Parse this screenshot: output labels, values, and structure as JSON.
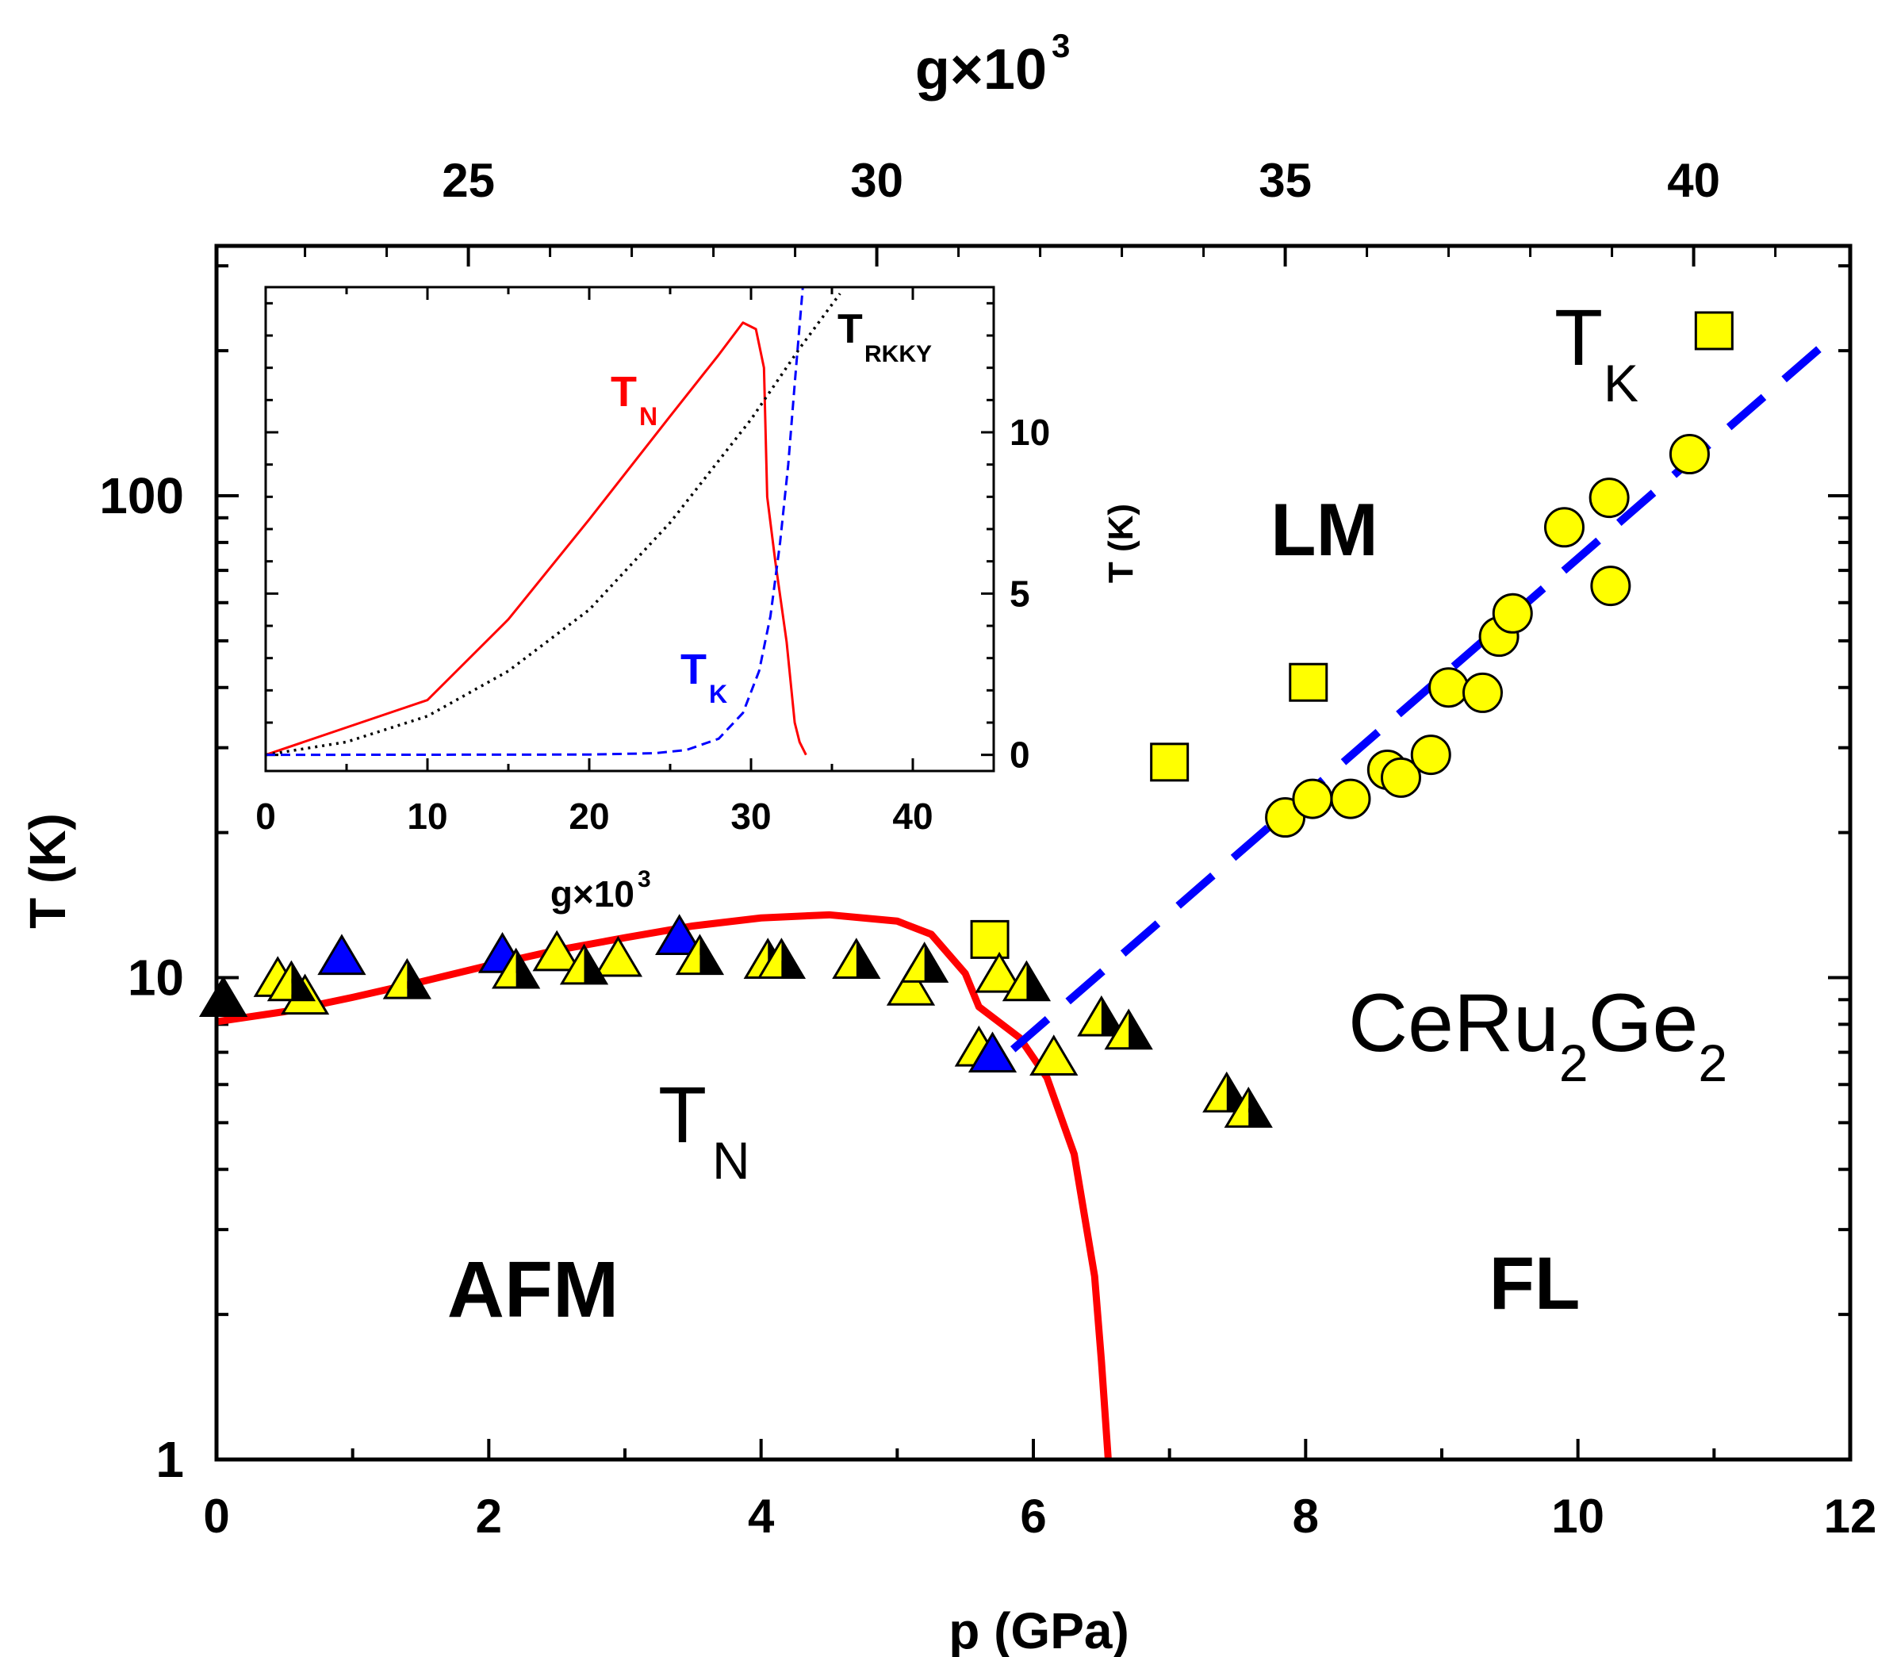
{
  "chart_data": [
    {
      "type": "scatter",
      "title": "",
      "material": {
        "base": "CeRu",
        "sub1": "2",
        "mid": "Ge",
        "sub2": "2"
      },
      "xlabel": "p (GPa)",
      "ylabel": "T (K)",
      "top_xlabel": {
        "base": "g×10",
        "sup": "3"
      },
      "xlim": [
        0,
        12
      ],
      "ylim": [
        1,
        330
      ],
      "yscale": "log",
      "x_ticks": [
        0,
        2,
        4,
        6,
        8,
        10,
        12
      ],
      "y_ticks": [
        1,
        10,
        100
      ],
      "top_x_ticks": [
        25,
        30,
        35,
        40
      ],
      "top_x_positions_gpa": [
        1.85,
        4.85,
        7.85,
        10.85
      ],
      "regions": {
        "afm": "AFM",
        "lm": "LM",
        "fl": "FL"
      },
      "annotations": {
        "tn": {
          "base": "T",
          "sub": "N"
        },
        "tk": {
          "base": "T",
          "sub": "K"
        }
      },
      "series": [
        {
          "name": "T_N fit",
          "kind": "line",
          "color": "#ff0000",
          "x": [
            0,
            0.5,
            1,
            1.5,
            2,
            2.5,
            3,
            3.5,
            4,
            4.5,
            5,
            5.25,
            5.5,
            5.6,
            5.9,
            6.1,
            6.3,
            6.45,
            6.5,
            6.55
          ],
          "y": [
            8.1,
            8.5,
            9.1,
            9.8,
            10.6,
            11.4,
            12.1,
            12.8,
            13.3,
            13.5,
            13.1,
            12.3,
            10.2,
            8.7,
            7.5,
            6.2,
            4.3,
            2.4,
            1.6,
            1.0
          ]
        },
        {
          "name": "T_K fit",
          "kind": "dashed",
          "color": "#0000ff",
          "x": [
            5.85,
            11.8
          ],
          "y": [
            7.1,
            205
          ]
        },
        {
          "name": "Yellow circles (T_K)",
          "kind": "circle",
          "fill": "#ffff00",
          "x": [
            7.85,
            8.05,
            8.33,
            8.6,
            8.7,
            8.92,
            9.05,
            9.3,
            9.42,
            9.52,
            9.9,
            10.23,
            10.24,
            10.82
          ],
          "y": [
            21.5,
            23.5,
            23.5,
            27,
            26,
            29,
            40,
            39,
            51,
            57,
            86,
            99,
            65,
            122
          ]
        },
        {
          "name": "Yellow squares",
          "kind": "square",
          "fill": "#ffff00",
          "x": [
            5.68,
            7.0,
            8.02,
            11.0
          ],
          "y": [
            12,
            28,
            41,
            220
          ]
        },
        {
          "name": "Yellow triangles",
          "kind": "triangle",
          "fill": "#ffff00",
          "x": [
            0.45,
            0.65,
            2.5,
            2.95,
            5.1,
            5.6,
            5.75,
            6.15
          ],
          "y": [
            9.9,
            9.1,
            11.2,
            10.9,
            9.5,
            7.1,
            10.1,
            6.8
          ]
        },
        {
          "name": "Blue triangles",
          "kind": "triangle",
          "fill": "#0000ff",
          "x": [
            0.92,
            2.1,
            3.4,
            5.7
          ],
          "y": [
            11.0,
            11.1,
            12.1,
            6.9
          ]
        },
        {
          "name": "Black triangles",
          "kind": "triangle",
          "fill": "#000000",
          "x": [
            0.05
          ],
          "y": [
            9.0
          ]
        },
        {
          "name": "Yellow/black half triangles",
          "kind": "half-triangle",
          "fill": "#ffff00",
          "x": [
            0.55,
            1.4,
            2.2,
            2.7,
            3.55,
            4.05,
            4.15,
            4.7,
            5.2,
            5.95,
            6.5,
            6.7,
            7.42,
            7.58
          ],
          "y": [
            9.7,
            9.8,
            10.3,
            10.5,
            11.0,
            10.8,
            10.8,
            10.8,
            10.6,
            9.7,
            8.2,
            7.7,
            5.7,
            5.3
          ]
        }
      ]
    },
    {
      "type": "line",
      "title": "inset",
      "xlabel": {
        "base": "g×10",
        "sup": "3"
      },
      "ylabel": "T (K)",
      "xlim": [
        0,
        45
      ],
      "ylim": [
        -0.5,
        14.5
      ],
      "x_ticks": [
        0,
        10,
        20,
        30,
        40
      ],
      "y_ticks": [
        0,
        5,
        10
      ],
      "legend": {
        "tn": {
          "base": "T",
          "sub": "N"
        },
        "tk": {
          "base": "T",
          "sub": "K"
        },
        "trkky": {
          "base": "T",
          "sub": "RKKY"
        }
      },
      "series": [
        {
          "name": "T_N",
          "kind": "solid",
          "color": "#ff0000",
          "x": [
            0,
            10,
            15,
            20,
            25,
            28,
            29.5,
            30.3,
            30.8,
            31.0,
            31.5,
            32.2,
            32.7,
            33.0,
            33.4
          ],
          "y": [
            0,
            1.7,
            4.2,
            7.3,
            10.5,
            12.4,
            13.4,
            13.2,
            12.0,
            8.0,
            6.0,
            3.5,
            1.0,
            0.4,
            0
          ]
        },
        {
          "name": "T_RKKY",
          "kind": "dotted",
          "color": "#000000",
          "x": [
            0,
            5,
            10,
            15,
            20,
            25,
            30,
            33,
            35.5
          ],
          "y": [
            0,
            0.4,
            1.2,
            2.6,
            4.5,
            7.2,
            10.4,
            12.6,
            14.3
          ]
        },
        {
          "name": "T_K",
          "kind": "dashed",
          "color": "#0000ff",
          "x": [
            0,
            20,
            24,
            26,
            28,
            29.5,
            30.5,
            31.2,
            31.8,
            32.3,
            32.7,
            33.2
          ],
          "y": [
            0,
            0.01,
            0.05,
            0.15,
            0.5,
            1.3,
            2.6,
            4.3,
            6.6,
            9.0,
            11.5,
            14.5
          ]
        }
      ]
    }
  ]
}
